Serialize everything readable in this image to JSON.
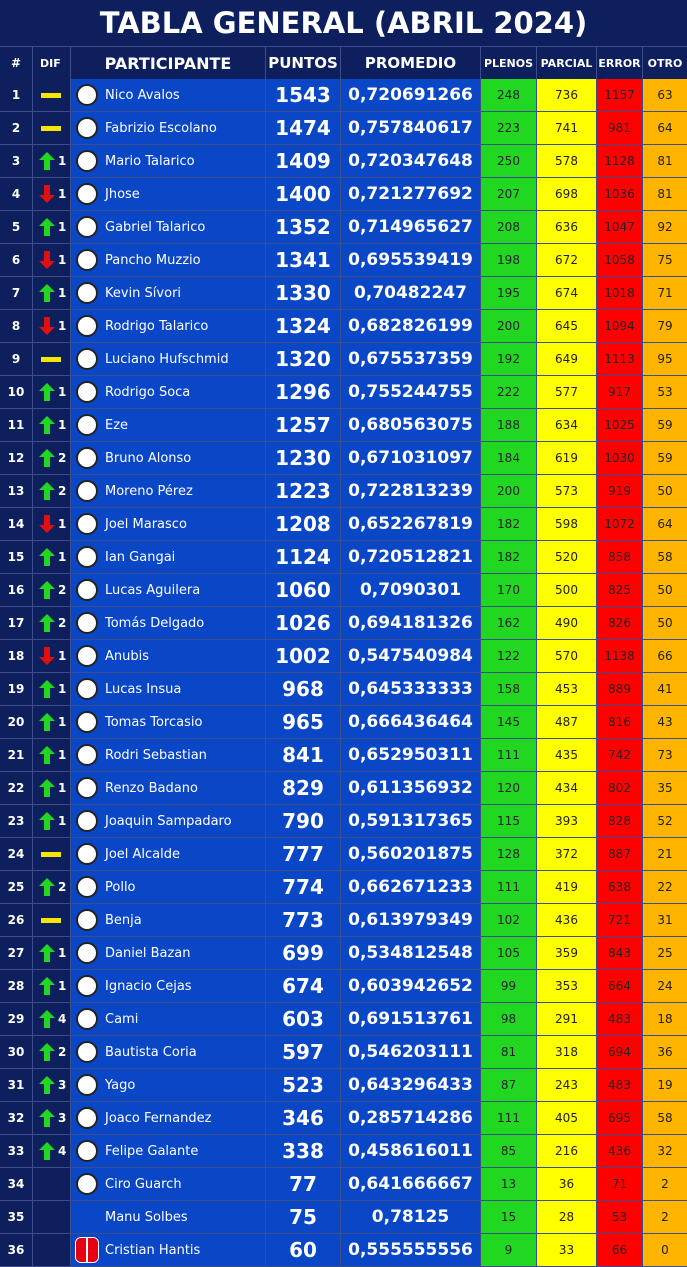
{
  "title": "TABLA GENERAL (ABRIL 2024)",
  "headers": {
    "num": "#",
    "dif": "DIF",
    "participante": "PARTICIPANTE",
    "puntos": "PUNTOS",
    "promedio": "PROMEDIO",
    "plenos": "PLENOS",
    "parcial": "PARCIAL",
    "error": "ERROR",
    "otro": "OTRO"
  },
  "colors": {
    "up": "#22d722",
    "down": "#e01010",
    "same": "#f5e600",
    "plenos": "#22d722",
    "parcial": "#ffff00",
    "error": "#ff0000",
    "otro": "#ffb500"
  },
  "rows": [
    {
      "num": "1",
      "dif_type": "same",
      "dif_num": "",
      "name": "Nico Avalos",
      "puntos": "1543",
      "promedio": "0,720691266",
      "plenos": "248",
      "parcial": "736",
      "error": "1157",
      "otro": "63",
      "logo": "club-crest-icon"
    },
    {
      "num": "2",
      "dif_type": "same",
      "dif_num": "",
      "name": "Fabrizio Escolano",
      "puntos": "1474",
      "promedio": "0,757840617",
      "plenos": "223",
      "parcial": "741",
      "error": "981",
      "otro": "64",
      "logo": "club-crest-icon"
    },
    {
      "num": "3",
      "dif_type": "up",
      "dif_num": "1",
      "name": "Mario Talarico",
      "puntos": "1409",
      "promedio": "0,720347648",
      "plenos": "250",
      "parcial": "578",
      "error": "1128",
      "otro": "81",
      "logo": "club-crest-icon"
    },
    {
      "num": "4",
      "dif_type": "down",
      "dif_num": "1",
      "name": "Jhose",
      "puntos": "1400",
      "promedio": "0,721277692",
      "plenos": "207",
      "parcial": "698",
      "error": "1036",
      "otro": "81",
      "logo": "club-crest-icon"
    },
    {
      "num": "5",
      "dif_type": "up",
      "dif_num": "1",
      "name": "Gabriel Talarico",
      "puntos": "1352",
      "promedio": "0,714965627",
      "plenos": "208",
      "parcial": "636",
      "error": "1047",
      "otro": "92",
      "logo": "club-crest-icon"
    },
    {
      "num": "6",
      "dif_type": "down",
      "dif_num": "1",
      "name": "Pancho Muzzio",
      "puntos": "1341",
      "promedio": "0,695539419",
      "plenos": "198",
      "parcial": "672",
      "error": "1058",
      "otro": "75",
      "logo": "club-crest-icon"
    },
    {
      "num": "7",
      "dif_type": "up",
      "dif_num": "1",
      "name": "Kevin Sívori",
      "puntos": "1330",
      "promedio": "0,70482247",
      "plenos": "195",
      "parcial": "674",
      "error": "1018",
      "otro": "71",
      "logo": "club-crest-icon"
    },
    {
      "num": "8",
      "dif_type": "down",
      "dif_num": "1",
      "name": "Rodrigo Talarico",
      "puntos": "1324",
      "promedio": "0,682826199",
      "plenos": "200",
      "parcial": "645",
      "error": "1094",
      "otro": "79",
      "logo": "club-crest-icon"
    },
    {
      "num": "9",
      "dif_type": "same",
      "dif_num": "",
      "name": "Luciano Hufschmid",
      "puntos": "1320",
      "promedio": "0,675537359",
      "plenos": "192",
      "parcial": "649",
      "error": "1113",
      "otro": "95",
      "logo": "club-crest-icon"
    },
    {
      "num": "10",
      "dif_type": "up",
      "dif_num": "1",
      "name": "Rodrigo Soca",
      "puntos": "1296",
      "promedio": "0,755244755",
      "plenos": "222",
      "parcial": "577",
      "error": "917",
      "otro": "53",
      "logo": "club-crest-icon"
    },
    {
      "num": "11",
      "dif_type": "up",
      "dif_num": "1",
      "name": "Eze",
      "puntos": "1257",
      "promedio": "0,680563075",
      "plenos": "188",
      "parcial": "634",
      "error": "1025",
      "otro": "59",
      "logo": "club-crest-icon"
    },
    {
      "num": "12",
      "dif_type": "up",
      "dif_num": "2",
      "name": "Bruno Alonso",
      "puntos": "1230",
      "promedio": "0,671031097",
      "plenos": "184",
      "parcial": "619",
      "error": "1030",
      "otro": "59",
      "logo": "club-crest-icon"
    },
    {
      "num": "13",
      "dif_type": "up",
      "dif_num": "2",
      "name": "Moreno Pérez",
      "puntos": "1223",
      "promedio": "0,722813239",
      "plenos": "200",
      "parcial": "573",
      "error": "919",
      "otro": "50",
      "logo": "club-crest-icon"
    },
    {
      "num": "14",
      "dif_type": "down",
      "dif_num": "1",
      "name": "Joel Marasco",
      "puntos": "1208",
      "promedio": "0,652267819",
      "plenos": "182",
      "parcial": "598",
      "error": "1072",
      "otro": "64",
      "logo": "club-crest-icon"
    },
    {
      "num": "15",
      "dif_type": "up",
      "dif_num": "1",
      "name": "Ian Gangai",
      "puntos": "1124",
      "promedio": "0,720512821",
      "plenos": "182",
      "parcial": "520",
      "error": "858",
      "otro": "58",
      "logo": "club-crest-icon"
    },
    {
      "num": "16",
      "dif_type": "up",
      "dif_num": "2",
      "name": "Lucas Aguilera",
      "puntos": "1060",
      "promedio": "0,7090301",
      "plenos": "170",
      "parcial": "500",
      "error": "825",
      "otro": "50",
      "logo": "club-crest-icon"
    },
    {
      "num": "17",
      "dif_type": "up",
      "dif_num": "2",
      "name": "Tomás Delgado",
      "puntos": "1026",
      "promedio": "0,694181326",
      "plenos": "162",
      "parcial": "490",
      "error": "826",
      "otro": "50",
      "logo": "club-crest-icon"
    },
    {
      "num": "18",
      "dif_type": "down",
      "dif_num": "1",
      "name": "Anubis",
      "puntos": "1002",
      "promedio": "0,547540984",
      "plenos": "122",
      "parcial": "570",
      "error": "1138",
      "otro": "66",
      "logo": "club-crest-icon"
    },
    {
      "num": "19",
      "dif_type": "up",
      "dif_num": "1",
      "name": "Lucas Insua",
      "puntos": "968",
      "promedio": "0,645333333",
      "plenos": "158",
      "parcial": "453",
      "error": "889",
      "otro": "41",
      "logo": "club-crest-icon"
    },
    {
      "num": "20",
      "dif_type": "up",
      "dif_num": "1",
      "name": "Tomas Torcasio",
      "puntos": "965",
      "promedio": "0,666436464",
      "plenos": "145",
      "parcial": "487",
      "error": "816",
      "otro": "43",
      "logo": "club-crest-icon"
    },
    {
      "num": "21",
      "dif_type": "up",
      "dif_num": "1",
      "name": "Rodri Sebastian",
      "puntos": "841",
      "promedio": "0,652950311",
      "plenos": "111",
      "parcial": "435",
      "error": "742",
      "otro": "73",
      "logo": "club-crest-icon"
    },
    {
      "num": "22",
      "dif_type": "up",
      "dif_num": "1",
      "name": "Renzo Badano",
      "puntos": "829",
      "promedio": "0,611356932",
      "plenos": "120",
      "parcial": "434",
      "error": "802",
      "otro": "35",
      "logo": "club-crest-icon"
    },
    {
      "num": "23",
      "dif_type": "up",
      "dif_num": "1",
      "name": "Joaquin Sampadaro",
      "puntos": "790",
      "promedio": "0,591317365",
      "plenos": "115",
      "parcial": "393",
      "error": "828",
      "otro": "52",
      "logo": "club-crest-icon"
    },
    {
      "num": "24",
      "dif_type": "same",
      "dif_num": "",
      "name": "Joel Alcalde",
      "puntos": "777",
      "promedio": "0,560201875",
      "plenos": "128",
      "parcial": "372",
      "error": "887",
      "otro": "21",
      "logo": "club-crest-icon"
    },
    {
      "num": "25",
      "dif_type": "up",
      "dif_num": "2",
      "name": "Pollo",
      "puntos": "774",
      "promedio": "0,662671233",
      "plenos": "111",
      "parcial": "419",
      "error": "638",
      "otro": "22",
      "logo": "club-crest-icon"
    },
    {
      "num": "26",
      "dif_type": "same",
      "dif_num": "",
      "name": "Benja",
      "puntos": "773",
      "promedio": "0,613979349",
      "plenos": "102",
      "parcial": "436",
      "error": "721",
      "otro": "31",
      "logo": "club-crest-icon"
    },
    {
      "num": "27",
      "dif_type": "up",
      "dif_num": "1",
      "name": "Daniel Bazan",
      "puntos": "699",
      "promedio": "0,534812548",
      "plenos": "105",
      "parcial": "359",
      "error": "843",
      "otro": "25",
      "logo": "club-crest-icon"
    },
    {
      "num": "28",
      "dif_type": "up",
      "dif_num": "1",
      "name": "Ignacio Cejas",
      "puntos": "674",
      "promedio": "0,603942652",
      "plenos": "99",
      "parcial": "353",
      "error": "664",
      "otro": "24",
      "logo": "club-crest-icon"
    },
    {
      "num": "29",
      "dif_type": "up",
      "dif_num": "4",
      "name": "Cami",
      "puntos": "603",
      "promedio": "0,691513761",
      "plenos": "98",
      "parcial": "291",
      "error": "483",
      "otro": "18",
      "logo": "club-crest-icon"
    },
    {
      "num": "30",
      "dif_type": "up",
      "dif_num": "2",
      "name": "Bautista Coria",
      "puntos": "597",
      "promedio": "0,546203111",
      "plenos": "81",
      "parcial": "318",
      "error": "694",
      "otro": "36",
      "logo": "club-crest-icon"
    },
    {
      "num": "31",
      "dif_type": "up",
      "dif_num": "3",
      "name": "Yago",
      "puntos": "523",
      "promedio": "0,643296433",
      "plenos": "87",
      "parcial": "243",
      "error": "483",
      "otro": "19",
      "logo": "club-crest-icon"
    },
    {
      "num": "32",
      "dif_type": "up",
      "dif_num": "3",
      "name": "Joaco Fernandez",
      "puntos": "346",
      "promedio": "0,285714286",
      "plenos": "111",
      "parcial": "405",
      "error": "695",
      "otro": "58",
      "logo": "club-crest-icon"
    },
    {
      "num": "33",
      "dif_type": "up",
      "dif_num": "4",
      "name": "Felipe Galante",
      "puntos": "338",
      "promedio": "0,458616011",
      "plenos": "85",
      "parcial": "216",
      "error": "436",
      "otro": "32",
      "logo": "club-crest-icon"
    },
    {
      "num": "34",
      "dif_type": "none",
      "dif_num": "",
      "name": "Ciro Guarch",
      "puntos": "77",
      "promedio": "0,641666667",
      "plenos": "13",
      "parcial": "36",
      "error": "71",
      "otro": "2",
      "logo": "club-crest-icon"
    },
    {
      "num": "35",
      "dif_type": "none",
      "dif_num": "",
      "name": "Manu Solbes",
      "puntos": "75",
      "promedio": "0,78125",
      "plenos": "15",
      "parcial": "28",
      "error": "53",
      "otro": "2",
      "logo": "none"
    },
    {
      "num": "36",
      "dif_type": "none",
      "dif_num": "",
      "name": "Cristian Hantis",
      "puntos": "60",
      "promedio": "0,555555556",
      "plenos": "9",
      "parcial": "33",
      "error": "66",
      "otro": "0",
      "logo": "switch-logo-icon"
    }
  ]
}
